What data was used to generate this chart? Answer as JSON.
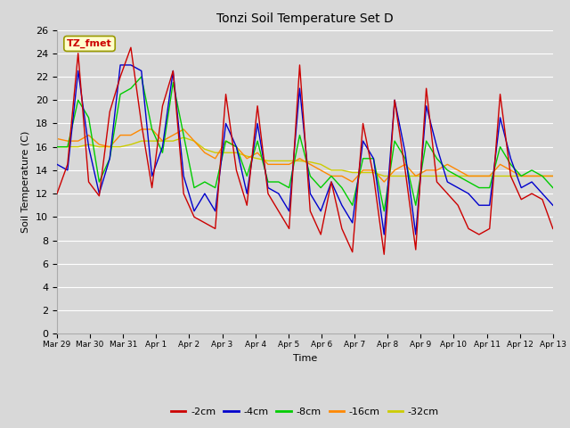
{
  "title": "Tonzi Soil Temperature Set D",
  "xlabel": "Time",
  "ylabel": "Soil Temperature (C)",
  "legend_label": "TZ_fmet",
  "series_labels": [
    "-2cm",
    "-4cm",
    "-8cm",
    "-16cm",
    "-32cm"
  ],
  "series_colors": [
    "#cc0000",
    "#0000cc",
    "#00cc00",
    "#ff8800",
    "#cccc00"
  ],
  "ylim": [
    0,
    26
  ],
  "yticks": [
    0,
    2,
    4,
    6,
    8,
    10,
    12,
    14,
    16,
    18,
    20,
    22,
    24,
    26
  ],
  "bg_color": "#d8d8d8",
  "tick_labels": [
    "Mar 29",
    "Mar 30",
    "Mar 31",
    "Apr 1",
    "Apr 2",
    "Apr 3",
    "Apr 4",
    "Apr 5",
    "Apr 6",
    "Apr 7",
    "Apr 8",
    "Apr 9",
    "Apr 10",
    "Apr 11",
    "Apr 12",
    "Apr 13"
  ],
  "data_2cm": [
    12.0,
    14.5,
    24.0,
    13.0,
    11.8,
    19.0,
    22.0,
    24.5,
    18.0,
    12.5,
    19.5,
    22.5,
    12.0,
    10.0,
    9.5,
    9.0,
    20.5,
    14.0,
    11.0,
    19.5,
    12.0,
    10.5,
    9.0,
    23.0,
    10.5,
    8.5,
    13.0,
    9.0,
    7.0,
    18.0,
    13.5,
    6.8,
    20.0,
    14.0,
    7.2,
    21.0,
    13.0,
    12.0,
    11.0,
    9.0,
    8.5,
    9.0,
    20.5,
    13.5,
    11.5,
    12.0,
    11.5,
    9.0
  ],
  "data_4cm": [
    14.5,
    14.0,
    22.5,
    16.0,
    12.0,
    15.0,
    23.0,
    23.0,
    22.5,
    13.5,
    16.0,
    22.5,
    13.5,
    10.5,
    12.0,
    10.5,
    18.0,
    16.0,
    12.0,
    18.0,
    12.5,
    12.0,
    10.5,
    21.0,
    12.0,
    10.5,
    13.0,
    11.0,
    9.5,
    16.5,
    15.0,
    8.5,
    20.0,
    15.5,
    8.5,
    19.5,
    16.0,
    13.0,
    12.5,
    12.0,
    11.0,
    11.0,
    18.5,
    15.0,
    12.5,
    13.0,
    12.0,
    11.0
  ],
  "data_8cm": [
    16.0,
    16.0,
    20.0,
    18.5,
    13.0,
    15.0,
    20.5,
    21.0,
    22.0,
    17.5,
    15.5,
    21.5,
    17.0,
    12.5,
    13.0,
    12.5,
    16.5,
    16.0,
    13.5,
    16.5,
    13.0,
    13.0,
    12.5,
    17.0,
    13.5,
    12.5,
    13.5,
    12.5,
    11.0,
    15.0,
    15.0,
    10.5,
    16.5,
    15.0,
    11.0,
    16.5,
    15.0,
    14.0,
    13.5,
    13.0,
    12.5,
    12.5,
    16.0,
    14.5,
    13.5,
    14.0,
    13.5,
    12.5
  ],
  "data_16cm": [
    16.7,
    16.5,
    16.5,
    17.0,
    16.2,
    16.0,
    17.0,
    17.0,
    17.5,
    17.5,
    16.5,
    17.0,
    17.5,
    16.5,
    15.5,
    15.0,
    16.5,
    16.0,
    15.0,
    15.5,
    14.5,
    14.5,
    14.5,
    15.0,
    14.5,
    14.0,
    13.5,
    13.5,
    13.0,
    14.0,
    14.0,
    13.0,
    14.0,
    14.5,
    13.5,
    14.0,
    14.0,
    14.5,
    14.0,
    13.5,
    13.5,
    13.5,
    14.5,
    14.0,
    13.5,
    13.5,
    13.5,
    13.5
  ],
  "data_32cm": [
    16.0,
    16.0,
    16.0,
    16.2,
    16.0,
    16.0,
    16.0,
    16.2,
    16.5,
    16.5,
    16.5,
    16.5,
    16.8,
    16.5,
    15.8,
    15.5,
    15.5,
    15.5,
    15.2,
    15.0,
    14.8,
    14.8,
    14.8,
    14.8,
    14.7,
    14.5,
    14.0,
    14.0,
    13.8,
    13.8,
    13.8,
    13.5,
    13.5,
    13.5,
    13.5,
    13.5,
    13.5,
    13.5,
    13.5,
    13.5,
    13.5,
    13.5,
    13.5,
    13.5,
    13.5,
    13.5,
    13.5,
    13.5
  ]
}
